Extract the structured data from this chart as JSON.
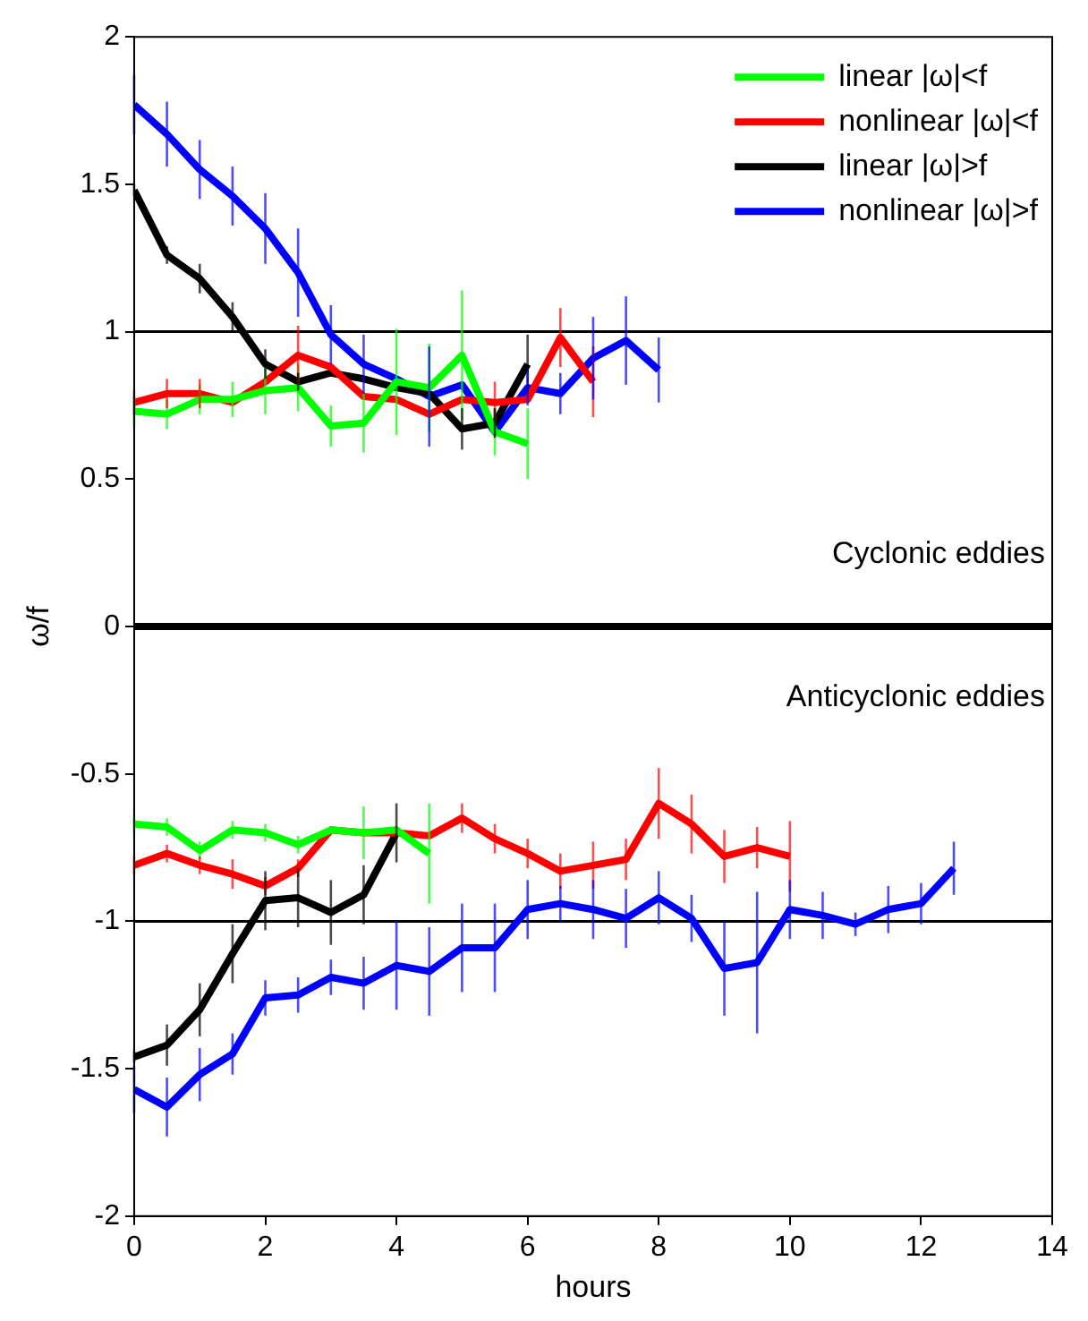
{
  "chart_data": {
    "type": "line",
    "xlabel": "hours",
    "ylabel": "ω/f",
    "xlim": [
      0,
      14
    ],
    "xticks": [
      0,
      2,
      4,
      6,
      8,
      10,
      12,
      14
    ],
    "ylim": [
      -2,
      2
    ],
    "yticks": [
      -2,
      -1.5,
      -1,
      -0.5,
      0,
      0.5,
      1,
      1.5,
      2
    ],
    "grid": false,
    "legend": "top right",
    "marker": "none",
    "line_style": "solid",
    "annotations": [
      "Cyclonic eddies",
      "Anticyclonic eddies"
    ],
    "ref_lines": [
      {
        "axis": "y",
        "value": 1,
        "color": "#000000"
      },
      {
        "axis": "y",
        "value": 0,
        "color": "#000000"
      },
      {
        "axis": "y",
        "value": -1,
        "color": "#000000"
      }
    ],
    "series": [
      {
        "name": "linear |ω|<f",
        "color": "#00ff00",
        "x": [
          0,
          0.5,
          1,
          1.5,
          2,
          2.5,
          3,
          3.5,
          4,
          4.5,
          5,
          5.5,
          6
        ],
        "values": [
          0.73,
          0.72,
          0.77,
          0.77,
          0.8,
          0.81,
          0.68,
          0.69,
          0.83,
          0.81,
          0.92,
          0.66,
          0.62
        ],
        "errors": [
          0.05,
          0.05,
          0.05,
          0.06,
          0.08,
          0.08,
          0.07,
          0.1,
          0.18,
          0.15,
          0.22,
          0.08,
          0.12
        ]
      },
      {
        "name": "nonlinear |ω|<f",
        "color": "#ff0000",
        "x": [
          0,
          0.5,
          1,
          1.5,
          2,
          2.5,
          3,
          3.5,
          4,
          4.5,
          5,
          5.5,
          6,
          6.5,
          7
        ],
        "values": [
          0.76,
          0.79,
          0.79,
          0.76,
          0.83,
          0.92,
          0.88,
          0.78,
          0.77,
          0.72,
          0.77,
          0.76,
          0.77,
          0.98,
          0.83
        ],
        "errors": [
          0.04,
          0.05,
          0.05,
          null,
          null,
          0.1,
          null,
          null,
          null,
          null,
          null,
          0.07,
          null,
          0.1,
          0.12
        ]
      },
      {
        "name": "linear |ω|>f",
        "color": "#000000",
        "x": [
          0,
          0.5,
          1,
          1.5,
          2,
          2.5,
          3,
          3.5,
          4,
          4.5,
          5,
          5.5,
          6
        ],
        "values": [
          1.48,
          1.26,
          1.18,
          1.05,
          0.89,
          0.83,
          0.86,
          0.84,
          0.81,
          0.79,
          0.67,
          0.69,
          0.89
        ],
        "errors": [
          0.02,
          0.03,
          0.05,
          0.05,
          0.05,
          0.03,
          null,
          null,
          null,
          null,
          0.07,
          0.05,
          0.1
        ]
      },
      {
        "name": "nonlinear |ω|>f",
        "color": "#0000ff",
        "x": [
          0,
          0.5,
          1,
          1.5,
          2,
          2.5,
          3,
          3.5,
          4,
          4.5,
          5,
          5.5,
          6,
          6.5,
          7,
          7.5,
          8
        ],
        "values": [
          1.77,
          1.67,
          1.55,
          1.46,
          1.35,
          1.2,
          0.99,
          0.89,
          0.84,
          0.78,
          0.82,
          0.66,
          0.81,
          0.79,
          0.91,
          0.97,
          0.87
        ],
        "errors": [
          0.1,
          0.11,
          0.1,
          0.1,
          0.12,
          0.15,
          0.1,
          0.1,
          null,
          0.17,
          null,
          null,
          0.06,
          0.07,
          0.14,
          0.15,
          0.11
        ]
      },
      {
        "color": "#00ff00",
        "x": [
          0,
          0.5,
          1,
          1.5,
          2,
          2.5,
          3,
          3.5,
          4,
          4.5
        ],
        "values": [
          -0.67,
          -0.68,
          -0.76,
          -0.69,
          -0.7,
          -0.74,
          -0.69,
          -0.7,
          -0.69,
          -0.77
        ],
        "errors": [
          0.03,
          0.03,
          0.03,
          0.03,
          0.03,
          0.03,
          null,
          0.09,
          null,
          0.17
        ]
      },
      {
        "color": "#ff0000",
        "x": [
          0,
          0.5,
          1,
          1.5,
          2,
          2.5,
          3,
          3.5,
          4,
          4.5,
          5,
          5.5,
          6,
          6.5,
          7,
          7.5,
          8,
          8.5,
          9,
          9.5,
          10
        ],
        "values": [
          -0.81,
          -0.77,
          -0.81,
          -0.84,
          -0.88,
          -0.82,
          -0.69,
          -0.7,
          -0.7,
          -0.71,
          -0.65,
          -0.72,
          -0.77,
          -0.83,
          -0.81,
          -0.79,
          -0.6,
          -0.67,
          -0.78,
          -0.75,
          -0.78
        ],
        "errors": [
          0.03,
          0.03,
          0.03,
          0.05,
          0.03,
          0.03,
          null,
          null,
          null,
          null,
          0.05,
          0.05,
          0.05,
          0.06,
          0.08,
          0.07,
          0.12,
          0.1,
          0.09,
          0.07,
          0.12
        ]
      },
      {
        "color": "#000000",
        "x": [
          0,
          0.5,
          1,
          1.5,
          2,
          2.5,
          3,
          3.5,
          4
        ],
        "values": [
          -1.46,
          -1.42,
          -1.3,
          -1.11,
          -0.93,
          -0.92,
          -0.97,
          -0.91,
          -0.7
        ],
        "errors": [
          0.02,
          0.07,
          0.09,
          0.1,
          0.1,
          0.1,
          0.11,
          0.1,
          0.1
        ]
      },
      {
        "color": "#0000ff",
        "x": [
          0,
          0.5,
          1,
          1.5,
          2,
          2.5,
          3,
          3.5,
          4,
          4.5,
          5,
          5.5,
          6,
          6.5,
          7,
          7.5,
          8,
          8.5,
          9,
          9.5,
          10,
          10.5,
          11,
          11.5,
          12,
          12.5
        ],
        "values": [
          -1.57,
          -1.63,
          -1.52,
          -1.45,
          -1.26,
          -1.25,
          -1.19,
          -1.21,
          -1.15,
          -1.17,
          -1.09,
          -1.09,
          -0.96,
          -0.94,
          -0.96,
          -0.99,
          -0.92,
          -0.99,
          -1.16,
          -1.14,
          -0.96,
          -0.98,
          -1.01,
          -0.96,
          -0.94,
          -0.82
        ],
        "errors": [
          0.08,
          0.1,
          0.09,
          0.07,
          0.06,
          0.06,
          0.06,
          0.09,
          0.15,
          0.15,
          0.15,
          0.15,
          0.1,
          0.06,
          0.1,
          0.1,
          0.09,
          0.08,
          0.16,
          0.24,
          0.1,
          0.08,
          0.04,
          0.08,
          0.07,
          0.09
        ]
      }
    ]
  }
}
